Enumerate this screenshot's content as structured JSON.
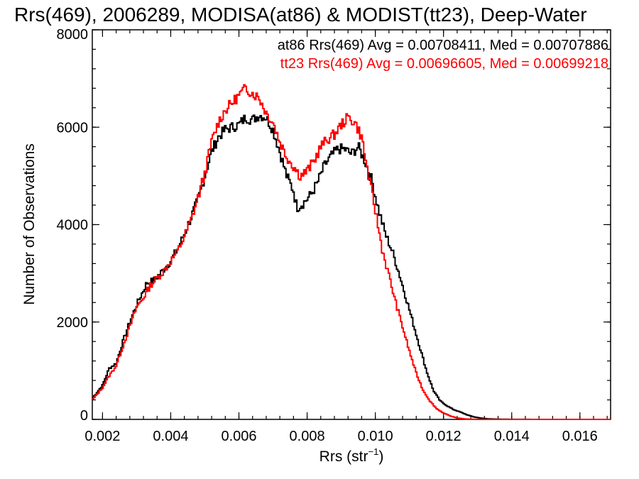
{
  "chart_data": {
    "type": "line",
    "title": "Rrs(469), 2006289, MODISA(at86) & MODIST(tt23), Deep-Water",
    "xlabel": "Rrs (str",
    "xlabel_sup": "−1",
    "xlabel_close": ")",
    "ylabel": "Number of Observations",
    "xlim": [
      0.0017,
      0.0169
    ],
    "ylim": [
      0,
      8000
    ],
    "x_ticks": [
      "0.002",
      "0.004",
      "0.006",
      "0.008",
      "0.010",
      "0.012",
      "0.014",
      "0.016"
    ],
    "x_tick_values": [
      0.002,
      0.004,
      0.006,
      0.008,
      0.01,
      0.012,
      0.014,
      0.016
    ],
    "y_ticks": [
      "0",
      "2000",
      "4000",
      "6000",
      "8000"
    ],
    "y_tick_values": [
      0,
      2000,
      4000,
      6000,
      8000
    ],
    "legend": [
      {
        "text": "at86 Rrs(469) Avg = 0.00708411, Med = 0.00707886",
        "color": "#000000"
      },
      {
        "text": "tt23 Rrs(469) Avg = 0.00696605, Med = 0.00699218",
        "color": "#ff0000"
      }
    ],
    "series": [
      {
        "name": "at86",
        "color": "#000000",
        "step": true,
        "points": [
          [
            0.0017,
            430
          ],
          [
            0.002,
            700
          ],
          [
            0.0022,
            1050
          ],
          [
            0.0024,
            1150
          ],
          [
            0.0026,
            1600
          ],
          [
            0.0028,
            2000
          ],
          [
            0.003,
            2350
          ],
          [
            0.0032,
            2650
          ],
          [
            0.0033,
            2800
          ],
          [
            0.0035,
            2850
          ],
          [
            0.0037,
            3000
          ],
          [
            0.004,
            3250
          ],
          [
            0.0042,
            3500
          ],
          [
            0.0044,
            3800
          ],
          [
            0.0046,
            4150
          ],
          [
            0.0048,
            4500
          ],
          [
            0.005,
            5000
          ],
          [
            0.0052,
            5500
          ],
          [
            0.0054,
            5800
          ],
          [
            0.0056,
            5950
          ],
          [
            0.0058,
            6000
          ],
          [
            0.006,
            6050
          ],
          [
            0.0062,
            6200
          ],
          [
            0.0064,
            6150
          ],
          [
            0.0066,
            6250
          ],
          [
            0.0068,
            6200
          ],
          [
            0.007,
            5950
          ],
          [
            0.0072,
            5500
          ],
          [
            0.0074,
            5000
          ],
          [
            0.0076,
            4700
          ],
          [
            0.0077,
            4350
          ],
          [
            0.0079,
            4450
          ],
          [
            0.0081,
            4600
          ],
          [
            0.0083,
            4850
          ],
          [
            0.0085,
            5200
          ],
          [
            0.0087,
            5400
          ],
          [
            0.0089,
            5550
          ],
          [
            0.0091,
            5550
          ],
          [
            0.0093,
            5450
          ],
          [
            0.0095,
            5600
          ],
          [
            0.0097,
            5300
          ],
          [
            0.0099,
            4900
          ],
          [
            0.0101,
            4300
          ],
          [
            0.0103,
            3800
          ],
          [
            0.0105,
            3450
          ],
          [
            0.0107,
            3000
          ],
          [
            0.0109,
            2500
          ],
          [
            0.0111,
            2000
          ],
          [
            0.0113,
            1500
          ],
          [
            0.0115,
            1000
          ],
          [
            0.0117,
            600
          ],
          [
            0.0119,
            380
          ],
          [
            0.0121,
            280
          ],
          [
            0.0123,
            200
          ],
          [
            0.0125,
            150
          ],
          [
            0.0127,
            90
          ],
          [
            0.0129,
            50
          ],
          [
            0.0131,
            25
          ],
          [
            0.0133,
            12
          ],
          [
            0.0136,
            5
          ],
          [
            0.014,
            2
          ],
          [
            0.015,
            0
          ],
          [
            0.0169,
            0
          ]
        ]
      },
      {
        "name": "tt23",
        "color": "#ff0000",
        "step": true,
        "points": [
          [
            0.0017,
            400
          ],
          [
            0.002,
            650
          ],
          [
            0.0022,
            900
          ],
          [
            0.0024,
            1100
          ],
          [
            0.0026,
            1500
          ],
          [
            0.0028,
            1900
          ],
          [
            0.003,
            2300
          ],
          [
            0.0032,
            2500
          ],
          [
            0.0034,
            2750
          ],
          [
            0.0036,
            2900
          ],
          [
            0.0038,
            3050
          ],
          [
            0.004,
            3250
          ],
          [
            0.0042,
            3450
          ],
          [
            0.0044,
            3750
          ],
          [
            0.0046,
            4100
          ],
          [
            0.0048,
            4550
          ],
          [
            0.005,
            5050
          ],
          [
            0.0052,
            5700
          ],
          [
            0.0054,
            6100
          ],
          [
            0.0056,
            6350
          ],
          [
            0.0058,
            6500
          ],
          [
            0.006,
            6650
          ],
          [
            0.0062,
            6800
          ],
          [
            0.0064,
            6700
          ],
          [
            0.0066,
            6600
          ],
          [
            0.0068,
            6300
          ],
          [
            0.007,
            6100
          ],
          [
            0.0072,
            5700
          ],
          [
            0.0074,
            5400
          ],
          [
            0.0076,
            5200
          ],
          [
            0.0078,
            5000
          ],
          [
            0.008,
            5100
          ],
          [
            0.0082,
            5300
          ],
          [
            0.0084,
            5600
          ],
          [
            0.0086,
            5750
          ],
          [
            0.0088,
            5850
          ],
          [
            0.009,
            6050
          ],
          [
            0.0092,
            6200
          ],
          [
            0.0094,
            6100
          ],
          [
            0.0096,
            5800
          ],
          [
            0.0098,
            5000
          ],
          [
            0.01,
            4300
          ],
          [
            0.0102,
            3500
          ],
          [
            0.0104,
            2950
          ],
          [
            0.0106,
            2400
          ],
          [
            0.0108,
            1900
          ],
          [
            0.011,
            1400
          ],
          [
            0.0112,
            950
          ],
          [
            0.0114,
            600
          ],
          [
            0.0116,
            380
          ],
          [
            0.0118,
            220
          ],
          [
            0.012,
            130
          ],
          [
            0.0122,
            70
          ],
          [
            0.0124,
            30
          ],
          [
            0.0126,
            10
          ],
          [
            0.0128,
            3
          ],
          [
            0.0132,
            0
          ],
          [
            0.0169,
            0
          ]
        ]
      }
    ]
  }
}
